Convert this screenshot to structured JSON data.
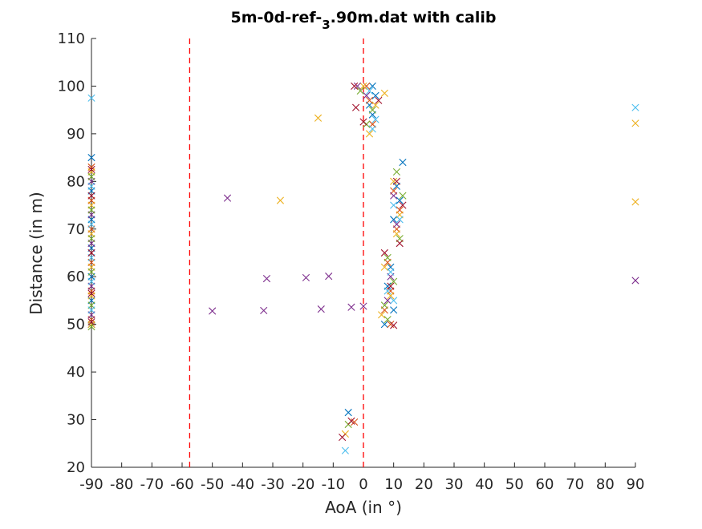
{
  "chart_data": {
    "type": "scatter",
    "title": "5m-0d-ref-",
    "title_sub": "3",
    "title_rest": ".90m.dat with calib",
    "xlabel": "AoA (in °)",
    "ylabel": "Distance (in m)",
    "xlim": [
      -90,
      90
    ],
    "ylim": [
      20,
      110
    ],
    "xticks": [
      -90,
      -80,
      -70,
      -60,
      -50,
      -40,
      -30,
      -20,
      -10,
      0,
      10,
      20,
      30,
      40,
      50,
      60,
      70,
      80,
      90
    ],
    "yticks": [
      20,
      30,
      40,
      50,
      60,
      70,
      80,
      90,
      100,
      110
    ],
    "grid": false,
    "marker": "x",
    "reference_lines": [
      {
        "x": -57.5,
        "style": "dashed",
        "color": "#ff0000"
      },
      {
        "x": 0,
        "style": "dashed",
        "color": "#ff0000"
      }
    ],
    "colors": [
      "#0072bd",
      "#d95319",
      "#edb120",
      "#7e2f8e",
      "#77ac30",
      "#4dbeee",
      "#a2142f"
    ],
    "series": [
      {
        "color": "#0072bd",
        "points": [
          [
            -90,
            85
          ],
          [
            -90,
            78
          ],
          [
            -90,
            72
          ],
          [
            -90,
            66
          ],
          [
            -90,
            60
          ],
          [
            -90,
            55
          ],
          [
            -90,
            50
          ],
          [
            3,
            100
          ],
          [
            4,
            98
          ],
          [
            2,
            96
          ],
          [
            3,
            94
          ],
          [
            -5,
            31.5
          ],
          [
            13,
            84
          ],
          [
            11,
            79
          ],
          [
            12,
            76
          ],
          [
            10,
            72
          ],
          [
            9,
            62
          ],
          [
            8,
            58
          ],
          [
            10,
            53
          ],
          [
            7,
            50
          ]
        ]
      },
      {
        "color": "#d95319",
        "points": [
          [
            -90,
            83
          ],
          [
            -90,
            76
          ],
          [
            -90,
            70
          ],
          [
            -90,
            63
          ],
          [
            -90,
            57
          ],
          [
            -90,
            51
          ],
          [
            1,
            100
          ],
          [
            2,
            97
          ],
          [
            3,
            92
          ],
          [
            -3,
            29.5
          ],
          [
            10,
            78
          ],
          [
            12,
            74
          ],
          [
            11,
            70
          ],
          [
            8,
            63
          ],
          [
            9,
            57
          ],
          [
            7,
            53
          ],
          [
            9,
            50
          ]
        ]
      },
      {
        "color": "#edb120",
        "points": [
          [
            -15,
            93.3
          ],
          [
            -27.5,
            76
          ],
          [
            -90,
            82
          ],
          [
            -90,
            75
          ],
          [
            -90,
            69
          ],
          [
            -90,
            62
          ],
          [
            -90,
            56
          ],
          [
            -90,
            50
          ],
          [
            0,
            100
          ],
          [
            4,
            96
          ],
          [
            2,
            90
          ],
          [
            7,
            98.5
          ],
          [
            -6,
            27
          ],
          [
            10,
            80
          ],
          [
            12,
            73
          ],
          [
            11,
            69
          ],
          [
            7,
            62
          ],
          [
            9,
            56
          ],
          [
            6,
            52
          ],
          [
            90,
            92.2
          ],
          [
            90,
            75.7
          ]
        ]
      },
      {
        "color": "#7e2f8e",
        "points": [
          [
            -45,
            76.5
          ],
          [
            -50,
            52.8
          ],
          [
            -33,
            52.9
          ],
          [
            -32,
            59.6
          ],
          [
            -19,
            59.8
          ],
          [
            -11.5,
            60.1
          ],
          [
            -14,
            53.2
          ],
          [
            -4,
            53.6
          ],
          [
            0,
            53.8
          ],
          [
            -90,
            80
          ],
          [
            -90,
            73
          ],
          [
            -90,
            67
          ],
          [
            -90,
            58
          ],
          [
            -90,
            52
          ],
          [
            -2,
            100
          ],
          [
            1,
            98
          ],
          [
            10,
            77
          ],
          [
            11,
            71
          ],
          [
            9,
            60
          ],
          [
            8,
            55
          ],
          [
            90,
            59.2
          ]
        ]
      },
      {
        "color": "#77ac30",
        "points": [
          [
            -90,
            81
          ],
          [
            -90,
            74
          ],
          [
            -90,
            68
          ],
          [
            -90,
            61
          ],
          [
            -90,
            54
          ],
          [
            -90,
            49.5
          ],
          [
            -1,
            99
          ],
          [
            3,
            95
          ],
          [
            1,
            92
          ],
          [
            -5,
            29
          ],
          [
            11,
            82
          ],
          [
            13,
            77
          ],
          [
            12,
            68
          ],
          [
            8,
            64
          ],
          [
            10,
            59
          ],
          [
            7,
            54
          ],
          [
            8,
            51
          ]
        ]
      },
      {
        "color": "#4dbeee",
        "points": [
          [
            -90,
            97.5
          ],
          [
            -90,
            79
          ],
          [
            -90,
            71
          ],
          [
            -90,
            64
          ],
          [
            -90,
            59
          ],
          [
            -90,
            53
          ],
          [
            2,
            99
          ],
          [
            4,
            93
          ],
          [
            3,
            91
          ],
          [
            -6,
            23.5
          ],
          [
            10,
            75
          ],
          [
            12,
            72
          ],
          [
            9,
            61
          ],
          [
            8,
            57
          ],
          [
            10,
            55
          ],
          [
            90,
            95.5
          ]
        ]
      },
      {
        "color": "#a2142f",
        "points": [
          [
            -90,
            82.5
          ],
          [
            -90,
            77
          ],
          [
            -90,
            65
          ],
          [
            -90,
            56.5
          ],
          [
            -90,
            50.5
          ],
          [
            -2.5,
            95.5
          ],
          [
            0,
            92.5
          ],
          [
            -3,
            100
          ],
          [
            5,
            97
          ],
          [
            -7,
            26.3
          ],
          [
            -4,
            29.7
          ],
          [
            11,
            80
          ],
          [
            13,
            75
          ],
          [
            12,
            67
          ],
          [
            7,
            65
          ],
          [
            9,
            58
          ],
          [
            10,
            49.8
          ]
        ]
      }
    ]
  }
}
